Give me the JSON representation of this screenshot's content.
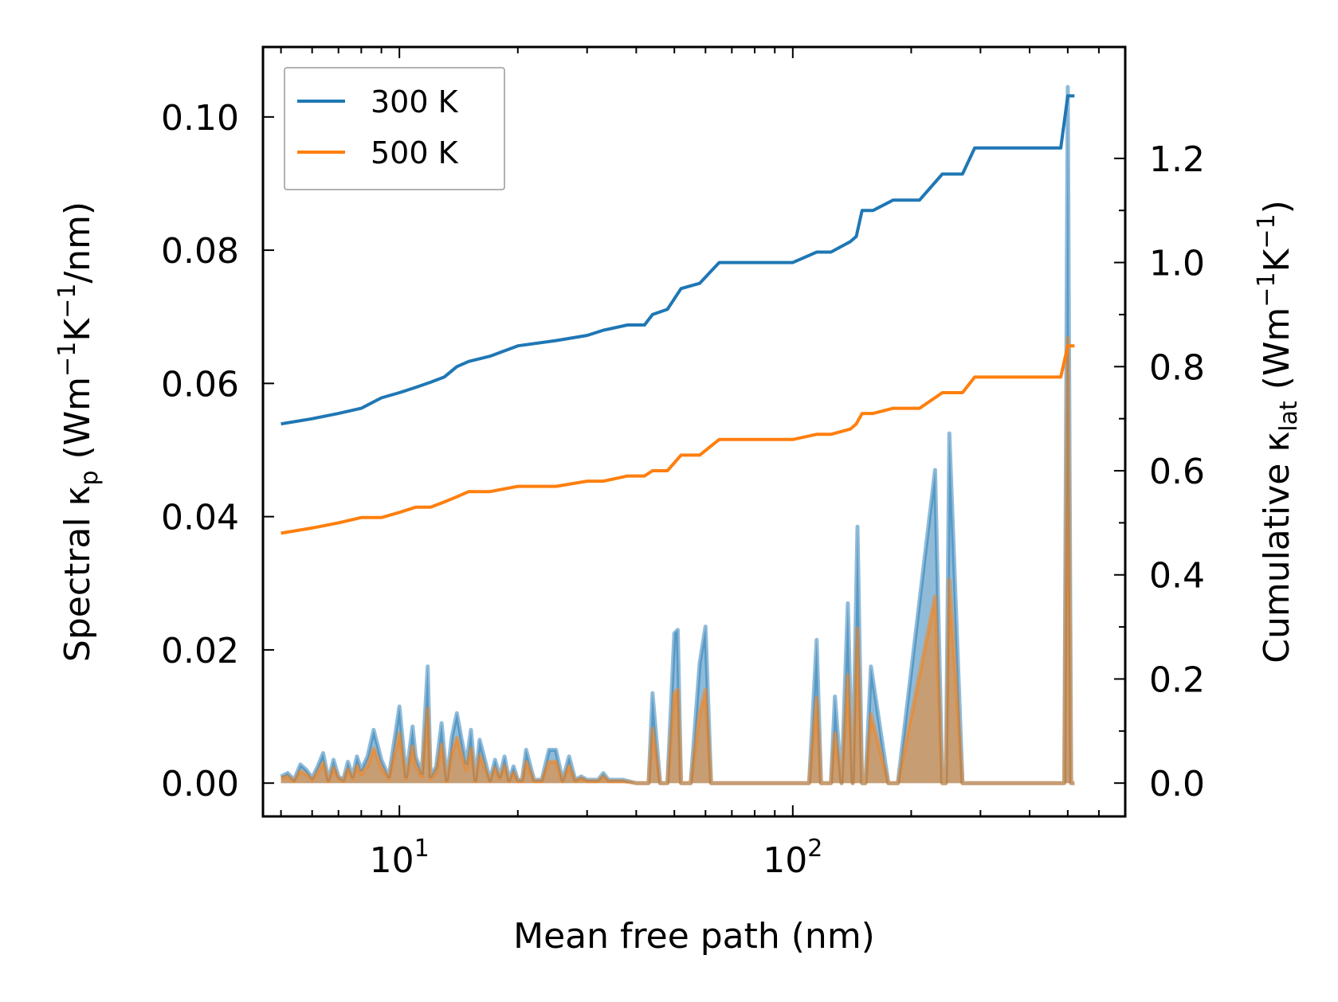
{
  "chart_data": {
    "type": "line",
    "xlabel": "Mean free path (nm)",
    "x_scale": "log",
    "xlim": [
      4.5,
      700
    ],
    "x_tick_labels": [
      {
        "value": 10,
        "base": "10",
        "exp": "1"
      },
      {
        "value": 100,
        "base": "10",
        "exp": "2"
      }
    ],
    "left_axis": {
      "label_parts": [
        "Spectral κ",
        "p",
        " (Wm",
        "−1",
        "K",
        "−1",
        "/nm)"
      ],
      "ylim": [
        -0.005,
        0.1105
      ],
      "ticks": [
        0.0,
        0.02,
        0.04,
        0.06,
        0.08,
        0.1
      ],
      "tick_labels": [
        "0.00",
        "0.02",
        "0.04",
        "0.06",
        "0.08",
        "0.10"
      ]
    },
    "right_axis": {
      "label_parts": [
        "Cumulative κ",
        "lat",
        " (Wm",
        "−1",
        "K",
        "−1",
        ")"
      ],
      "ylim": [
        -0.064,
        1.414
      ],
      "ticks": [
        0.0,
        0.2,
        0.4,
        0.6,
        0.8,
        1.0,
        1.2
      ],
      "tick_labels": [
        "0.0",
        "0.2",
        "0.4",
        "0.6",
        "0.8",
        "1.0",
        "1.2"
      ]
    },
    "legend": {
      "placement": "top-left",
      "entries": [
        "300 K",
        "500 K"
      ]
    },
    "series": [
      {
        "name": "300 K",
        "color": "#1f77b4",
        "cumulative": {
          "x": [
            5.0,
            6.0,
            7.0,
            8.0,
            9.0,
            10.0,
            11.0,
            12.0,
            13.0,
            14.0,
            15.0,
            17.0,
            20.0,
            25.0,
            30.0,
            33.0,
            38.0,
            42.0,
            44.0,
            48.0,
            52.0,
            58.0,
            65.0,
            70.0,
            100.0,
            115.0,
            125.0,
            140.0,
            145.0,
            150.0,
            160.0,
            180.0,
            210.0,
            240.0,
            270.0,
            290.0,
            320.0,
            480.0,
            500.0,
            520.0
          ],
          "y": [
            0.69,
            0.7,
            0.71,
            0.72,
            0.74,
            0.75,
            0.76,
            0.77,
            0.78,
            0.8,
            0.81,
            0.82,
            0.84,
            0.85,
            0.86,
            0.87,
            0.88,
            0.88,
            0.9,
            0.91,
            0.95,
            0.96,
            1.0,
            1.0,
            1.0,
            1.02,
            1.02,
            1.04,
            1.05,
            1.1,
            1.1,
            1.12,
            1.12,
            1.17,
            1.17,
            1.22,
            1.22,
            1.22,
            1.32,
            1.32
          ]
        },
        "spectral": {
          "x": [
            5.0,
            5.2,
            5.4,
            5.6,
            5.8,
            6.0,
            6.2,
            6.4,
            6.6,
            6.8,
            7.0,
            7.2,
            7.4,
            7.6,
            7.8,
            8.0,
            8.3,
            8.6,
            9.0,
            9.4,
            9.8,
            10.0,
            10.4,
            10.8,
            11.0,
            11.4,
            11.8,
            12.0,
            12.4,
            12.8,
            13.2,
            13.6,
            14.0,
            14.4,
            14.8,
            15.2,
            15.6,
            16.0,
            17.0,
            17.5,
            18.0,
            18.5,
            19.0,
            19.5,
            20.0,
            20.5,
            21.0,
            22.0,
            23.0,
            24.0,
            25.0,
            26.0,
            27.0,
            28.0,
            29.0,
            30.0,
            31.0,
            32.0,
            33.0,
            34.0,
            35.0,
            36.0,
            37.0,
            40.0,
            42.0,
            43.0,
            44.0,
            46.0,
            48.0,
            50.0,
            51.0,
            52.0,
            53.0,
            55.0,
            58.0,
            60.0,
            62.0,
            63.0,
            65.0,
            68.0,
            70.0,
            110.0,
            115.0,
            118.0,
            125.0,
            128.0,
            133.0,
            138.0,
            142.0,
            146.0,
            150.0,
            153.0,
            158.0,
            175.0,
            180.0,
            185.0,
            230.0,
            240.0,
            245.0,
            250.0,
            270.0,
            285.0,
            290.0,
            300.0,
            320.0,
            480.0,
            490.0,
            500.0,
            510.0,
            520.0
          ],
          "y": [
            0.001,
            0.0015,
            0.0005,
            0.0028,
            0.002,
            0.0008,
            0.0025,
            0.0045,
            0.0005,
            0.0035,
            0.001,
            0.0005,
            0.0032,
            0.001,
            0.004,
            0.002,
            0.004,
            0.008,
            0.0035,
            0.001,
            0.008,
            0.0115,
            0.001,
            0.0085,
            0.004,
            0.0015,
            0.0175,
            0.001,
            0.0025,
            0.009,
            0.0005,
            0.007,
            0.0105,
            0.0065,
            0.003,
            0.008,
            0.0005,
            0.0065,
            0.0005,
            0.0035,
            0.001,
            0.004,
            0.0005,
            0.0025,
            0.0005,
            0.0005,
            0.005,
            0.0005,
            0.0005,
            0.005,
            0.005,
            0.0005,
            0.004,
            0.0005,
            0.001,
            0.0005,
            0.0005,
            0.0005,
            0.0015,
            0.0005,
            0.0005,
            0.0005,
            0.0005,
            0.0,
            0.0,
            0.0,
            0.0135,
            0.0,
            0.0,
            0.0225,
            0.023,
            0.0,
            0.0,
            0.0,
            0.018,
            0.0235,
            0.0,
            0.0,
            0.0,
            0.0,
            0.0,
            0.0,
            0.0215,
            0.0,
            0.0,
            0.013,
            0.0,
            0.027,
            0.0,
            0.0385,
            0.0,
            0.0,
            0.0175,
            0.0,
            0.0,
            0.0,
            0.047,
            0.0,
            0.0,
            0.0525,
            0.0,
            0.0,
            0.0,
            0.0,
            0.0,
            0.0,
            0.0,
            0.1045,
            0.0,
            0.0
          ]
        }
      },
      {
        "name": "500 K",
        "color": "#ff7f0e",
        "cumulative": {
          "x": [
            5.0,
            6.0,
            7.0,
            8.0,
            9.0,
            10.0,
            11.0,
            12.0,
            13.0,
            14.0,
            15.0,
            17.0,
            20.0,
            25.0,
            30.0,
            33.0,
            38.0,
            42.0,
            44.0,
            48.0,
            52.0,
            58.0,
            65.0,
            70.0,
            100.0,
            115.0,
            125.0,
            140.0,
            145.0,
            150.0,
            160.0,
            180.0,
            210.0,
            240.0,
            270.0,
            290.0,
            320.0,
            480.0,
            500.0,
            520.0
          ],
          "y": [
            0.48,
            0.49,
            0.5,
            0.51,
            0.51,
            0.52,
            0.53,
            0.53,
            0.54,
            0.55,
            0.56,
            0.56,
            0.57,
            0.57,
            0.58,
            0.58,
            0.59,
            0.59,
            0.6,
            0.6,
            0.63,
            0.63,
            0.66,
            0.66,
            0.66,
            0.67,
            0.67,
            0.68,
            0.69,
            0.71,
            0.71,
            0.72,
            0.72,
            0.75,
            0.75,
            0.78,
            0.78,
            0.78,
            0.84,
            0.84
          ]
        },
        "spectral": {
          "x": [
            5.0,
            5.2,
            5.4,
            5.6,
            5.8,
            6.0,
            6.2,
            6.4,
            6.6,
            6.8,
            7.0,
            7.2,
            7.4,
            7.6,
            7.8,
            8.0,
            8.3,
            8.6,
            9.0,
            9.4,
            9.8,
            10.0,
            10.4,
            10.8,
            11.0,
            11.4,
            11.8,
            12.0,
            12.4,
            12.8,
            13.2,
            13.6,
            14.0,
            14.4,
            14.8,
            15.2,
            15.6,
            16.0,
            17.0,
            17.5,
            18.0,
            18.5,
            19.0,
            19.5,
            20.0,
            20.5,
            21.0,
            22.0,
            23.0,
            24.0,
            25.0,
            26.0,
            27.0,
            28.0,
            29.0,
            30.0,
            31.0,
            32.0,
            33.0,
            34.0,
            35.0,
            36.0,
            37.0,
            40.0,
            42.0,
            43.0,
            44.0,
            46.0,
            48.0,
            50.0,
            51.0,
            52.0,
            53.0,
            55.0,
            58.0,
            60.0,
            62.0,
            63.0,
            65.0,
            68.0,
            70.0,
            110.0,
            115.0,
            118.0,
            125.0,
            128.0,
            133.0,
            138.0,
            142.0,
            146.0,
            150.0,
            153.0,
            158.0,
            175.0,
            180.0,
            185.0,
            230.0,
            240.0,
            245.0,
            250.0,
            270.0,
            285.0,
            290.0,
            300.0,
            320.0,
            480.0,
            490.0,
            500.0,
            510.0,
            520.0
          ],
          "y": [
            0.0007,
            0.001,
            0.0003,
            0.0018,
            0.0013,
            0.0005,
            0.0016,
            0.003,
            0.0003,
            0.0023,
            0.0007,
            0.0003,
            0.0021,
            0.0007,
            0.0026,
            0.0013,
            0.0026,
            0.0052,
            0.0023,
            0.0007,
            0.0052,
            0.0075,
            0.0007,
            0.0055,
            0.0026,
            0.001,
            0.0112,
            0.0007,
            0.0016,
            0.0058,
            0.0003,
            0.0045,
            0.0068,
            0.0042,
            0.002,
            0.0052,
            0.0003,
            0.0042,
            0.0003,
            0.0023,
            0.0007,
            0.0026,
            0.0003,
            0.0016,
            0.0003,
            0.0003,
            0.0032,
            0.0003,
            0.0003,
            0.0032,
            0.0032,
            0.0003,
            0.0026,
            0.0003,
            0.0007,
            0.0003,
            0.0003,
            0.0003,
            0.001,
            0.0003,
            0.0003,
            0.0003,
            0.0003,
            0.0,
            0.0,
            0.0,
            0.0082,
            0.0,
            0.0,
            0.0135,
            0.014,
            0.0,
            0.0,
            0.0,
            0.0105,
            0.014,
            0.0,
            0.0,
            0.0,
            0.0,
            0.0,
            0.0,
            0.0128,
            0.0,
            0.0,
            0.0075,
            0.0,
            0.0162,
            0.0,
            0.0232,
            0.0,
            0.0,
            0.0103,
            0.0,
            0.0,
            0.0,
            0.028,
            0.0,
            0.0,
            0.0305,
            0.0,
            0.0,
            0.0,
            0.0,
            0.0,
            0.0,
            0.0,
            0.0668,
            0.0,
            0.0
          ]
        }
      }
    ]
  }
}
